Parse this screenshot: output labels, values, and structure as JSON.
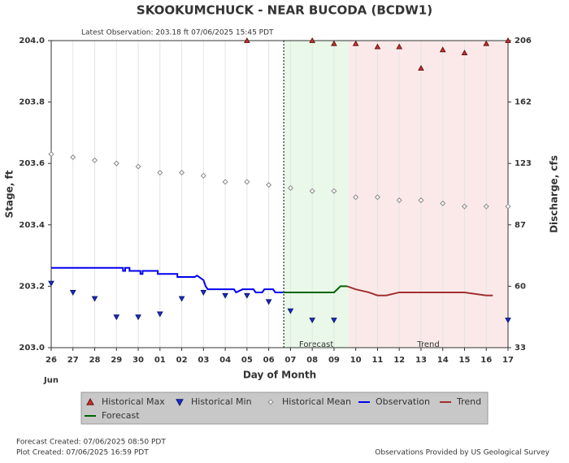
{
  "chart_data": {
    "type": "hydrograph",
    "title": "SKOOKUMCHUCK - NEAR BUCODA  (BCDW1)",
    "subtitle": "Latest Observation: 203.18 ft 07/06/2025 15:45 PDT",
    "y_label": "Stage, ft",
    "y2_label": "Discharge, cfs",
    "x_label": "Day of Month",
    "x_month_label": "Jun",
    "xlim": [
      0,
      21
    ],
    "xticks": [
      {
        "value": 0,
        "label": "26"
      },
      {
        "value": 1,
        "label": "27"
      },
      {
        "value": 2,
        "label": "28"
      },
      {
        "value": 3,
        "label": "29"
      },
      {
        "value": 4,
        "label": "30"
      },
      {
        "value": 5,
        "label": "01"
      },
      {
        "value": 6,
        "label": "02"
      },
      {
        "value": 7,
        "label": "03"
      },
      {
        "value": 8,
        "label": "04"
      },
      {
        "value": 9,
        "label": "05"
      },
      {
        "value": 10,
        "label": "06"
      },
      {
        "value": 11,
        "label": "07"
      },
      {
        "value": 12,
        "label": "08"
      },
      {
        "value": 13,
        "label": "09"
      },
      {
        "value": 14,
        "label": "10"
      },
      {
        "value": 15,
        "label": "11"
      },
      {
        "value": 16,
        "label": "12"
      },
      {
        "value": 17,
        "label": "13"
      },
      {
        "value": 18,
        "label": "14"
      },
      {
        "value": 19,
        "label": "15"
      },
      {
        "value": 20,
        "label": "16"
      },
      {
        "value": 21,
        "label": "17"
      }
    ],
    "ylim": [
      203,
      204
    ],
    "yticks": [
      {
        "value": 203,
        "label": "203.0"
      },
      203.2,
      203.4,
      203.6,
      203.8,
      {
        "value": 204,
        "label": "204.0"
      }
    ],
    "y2lim": [
      33,
      206
    ],
    "y2ticks": [
      33,
      60,
      87,
      123,
      162,
      206
    ],
    "grid": "x",
    "observation_marker_x": 10.69,
    "regions": [
      {
        "label": "Forecast",
        "x": [
          10.69,
          13.68
        ],
        "color": "#e9f8e9"
      },
      {
        "label": "Trend",
        "x": [
          13.68,
          21
        ],
        "color": "#fbe9e9"
      }
    ],
    "series": [
      {
        "name": "Historical Max",
        "style": "triangle-up",
        "color": "#c83232",
        "x": [
          9,
          12,
          13,
          14,
          15,
          16,
          17,
          18,
          19,
          20,
          21
        ],
        "values": [
          204.0,
          204.0,
          203.99,
          203.99,
          203.98,
          203.98,
          203.91,
          203.97,
          203.96,
          203.99,
          204.0
        ]
      },
      {
        "name": "Historical Min",
        "style": "triangle-down",
        "color": "#1a2ecc",
        "x": [
          0,
          1,
          2,
          3,
          4,
          5,
          6,
          7,
          8,
          9,
          10,
          11,
          12,
          13,
          21
        ],
        "values": [
          203.21,
          203.18,
          203.16,
          203.1,
          203.1,
          203.11,
          203.16,
          203.18,
          203.17,
          203.17,
          203.15,
          203.12,
          203.09,
          203.09,
          203.09
        ]
      },
      {
        "name": "Historical Mean",
        "style": "diamond",
        "color": "#888888",
        "x": [
          0,
          1,
          2,
          3,
          4,
          5,
          6,
          7,
          8,
          9,
          10,
          11,
          12,
          13,
          14,
          15,
          16,
          17,
          18,
          19,
          20,
          21
        ],
        "values": [
          203.63,
          203.62,
          203.61,
          203.6,
          203.59,
          203.57,
          203.57,
          203.56,
          203.54,
          203.54,
          203.53,
          203.52,
          203.51,
          203.51,
          203.49,
          203.49,
          203.48,
          203.48,
          203.47,
          203.46,
          203.46,
          203.46
        ]
      },
      {
        "name": "Observation",
        "style": "line",
        "color": "#0000ee",
        "x": [
          0,
          3.3,
          3.3,
          3.4,
          3.4,
          3.6,
          3.6,
          4.1,
          4.1,
          4.2,
          4.2,
          4.9,
          4.9,
          5.8,
          5.8,
          6.6,
          6.7,
          6.8,
          7.0,
          7.1,
          7.2,
          8.4,
          8.5,
          8.8,
          9.3,
          9.4,
          9.7,
          9.8,
          10.2,
          10.3,
          10.66
        ],
        "values": [
          203.26,
          203.26,
          203.25,
          203.25,
          203.26,
          203.26,
          203.25,
          203.25,
          203.24,
          203.24,
          203.25,
          203.25,
          203.24,
          203.24,
          203.23,
          203.23,
          203.235,
          203.23,
          203.22,
          203.2,
          203.19,
          203.19,
          203.18,
          203.19,
          203.19,
          203.18,
          203.18,
          203.19,
          203.19,
          203.18,
          203.18
        ]
      },
      {
        "name": "Trend",
        "style": "line",
        "color": "#a03030",
        "x": [
          13.6,
          14.0,
          14.6,
          15.0,
          15.4,
          16.0,
          17.0,
          18.0,
          19.0,
          20.0,
          20.3
        ],
        "values": [
          203.2,
          203.19,
          203.18,
          203.17,
          203.17,
          203.18,
          203.18,
          203.18,
          203.18,
          203.17,
          203.17
        ]
      },
      {
        "name": "Forecast",
        "style": "line",
        "color": "#006400",
        "x": [
          10.66,
          13.0,
          13.3,
          13.6
        ],
        "values": [
          203.18,
          203.18,
          203.2,
          203.2
        ]
      }
    ],
    "footer_left": [
      "Forecast Created: 07/06/2025 08:50 PDT",
      "Plot Created: 07/06/2025 16:59 PDT"
    ],
    "footer_right": "Observations Provided by US Geological Survey"
  }
}
